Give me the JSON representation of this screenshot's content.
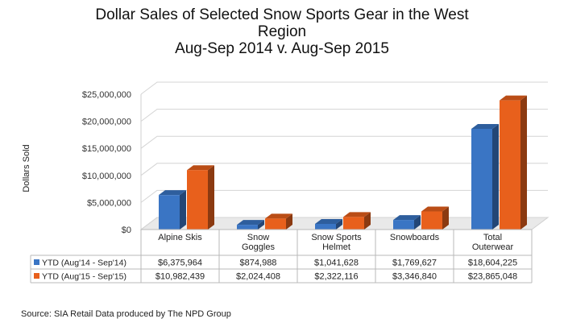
{
  "chart_data": {
    "type": "bar",
    "title_lines": [
      "Dollar Sales of Selected Snow Sports Gear in the West",
      "Region",
      "Aug-Sep 2014 v. Aug-Sep 2015"
    ],
    "ylabel": "Dollars Sold",
    "ylim": [
      0,
      25000000
    ],
    "yticks": [
      "$0",
      "$5,000,000",
      "$10,000,000",
      "$15,000,000",
      "$20,000,000",
      "$25,000,000"
    ],
    "ytick_values": [
      0,
      5000000,
      10000000,
      15000000,
      20000000,
      25000000
    ],
    "categories": [
      [
        "Alpine Skis"
      ],
      [
        "Snow",
        "Goggles"
      ],
      [
        "Snow Sports",
        "Helmet"
      ],
      [
        "Snowboards"
      ],
      [
        "Total",
        "Outerwear"
      ]
    ],
    "series": [
      {
        "name": "YTD (Aug'14 - Sep'14)",
        "color": "#3a75c4",
        "values": [
          6375964,
          874988,
          1041628,
          1769627,
          18604225
        ],
        "labels": [
          "$6,375,964",
          "$874,988",
          "$1,041,628",
          "$1,769,627",
          "$18,604,225"
        ]
      },
      {
        "name": "YTD (Aug'15 - Sep'15)",
        "color": "#e8601c",
        "values": [
          10982439,
          2024408,
          2322116,
          3346840,
          23865048
        ],
        "labels": [
          "$10,982,439",
          "$2,024,408",
          "$2,322,116",
          "$3,346,840",
          "$23,865,048"
        ]
      }
    ],
    "grid": true,
    "legend": "data-table"
  },
  "source": "Source:  SIA Retail Data produced by The NPD Group"
}
